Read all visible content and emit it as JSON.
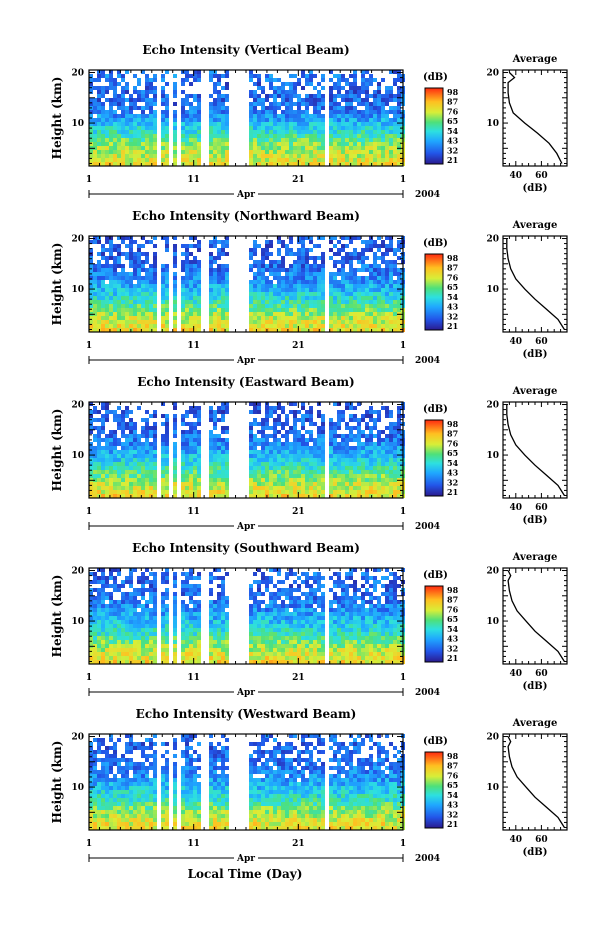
{
  "chart_data": {
    "type": "heatmap",
    "x_label": "Local Time (Day)",
    "x_ticks": [
      "1",
      "11",
      "21",
      "1"
    ],
    "month_label": "Apr",
    "year_label": "2004",
    "y_label": "Height (km)",
    "y_ticks": [
      "10",
      "20"
    ],
    "ylim": [
      1.5,
      20.5
    ],
    "colorbar_unit": "(dB)",
    "colorbar_ticks": [
      "98",
      "87",
      "76",
      "65",
      "54",
      "43",
      "32",
      "21"
    ],
    "colorbar_range": [
      21,
      98
    ],
    "average_title": "Average",
    "average_xlabel": "(dB)",
    "average_x_ticks": [
      "40",
      "60"
    ],
    "average_y_ticks": [
      "10",
      "20"
    ],
    "data_gaps_day": [
      [
        7.4,
        7.7
      ],
      [
        8.6,
        9.0
      ],
      [
        9.4,
        9.7
      ],
      [
        11.8,
        12.3
      ],
      [
        14.2,
        16.2
      ],
      [
        23.5,
        23.75
      ]
    ],
    "panels": [
      {
        "title": "Echo Intensity (Vertical Beam)",
        "average_profile": {
          "height_km": [
            2,
            4,
            6,
            8,
            10,
            12,
            14,
            16,
            18,
            19,
            20
          ],
          "db": [
            76,
            72,
            66,
            57,
            47,
            38,
            35,
            34,
            34,
            39,
            35
          ]
        }
      },
      {
        "title": "Echo Intensity (Northward Beam)",
        "average_profile": {
          "height_km": [
            2,
            4,
            6,
            8,
            10,
            12,
            14,
            16,
            18,
            20
          ],
          "db": [
            78,
            73,
            64,
            55,
            47,
            40,
            36,
            34,
            33,
            33
          ]
        }
      },
      {
        "title": "Echo Intensity (Eastward Beam)",
        "average_profile": {
          "height_km": [
            2,
            4,
            6,
            8,
            10,
            12,
            14,
            16,
            18,
            20
          ],
          "db": [
            78,
            73,
            64,
            55,
            47,
            40,
            36,
            34,
            33,
            33
          ]
        }
      },
      {
        "title": "Echo Intensity (Southward Beam)",
        "average_profile": {
          "height_km": [
            2,
            4,
            6,
            8,
            10,
            12,
            14,
            16,
            18,
            19,
            20
          ],
          "db": [
            78,
            73,
            64,
            55,
            48,
            41,
            37,
            35,
            34,
            36,
            34
          ]
        }
      },
      {
        "title": "Echo Intensity (Westward Beam)",
        "average_profile": {
          "height_km": [
            2,
            4,
            6,
            8,
            10,
            12,
            14,
            16,
            18,
            19,
            20
          ],
          "db": [
            78,
            73,
            64,
            55,
            48,
            41,
            37,
            35,
            34,
            36,
            34
          ]
        }
      }
    ]
  }
}
